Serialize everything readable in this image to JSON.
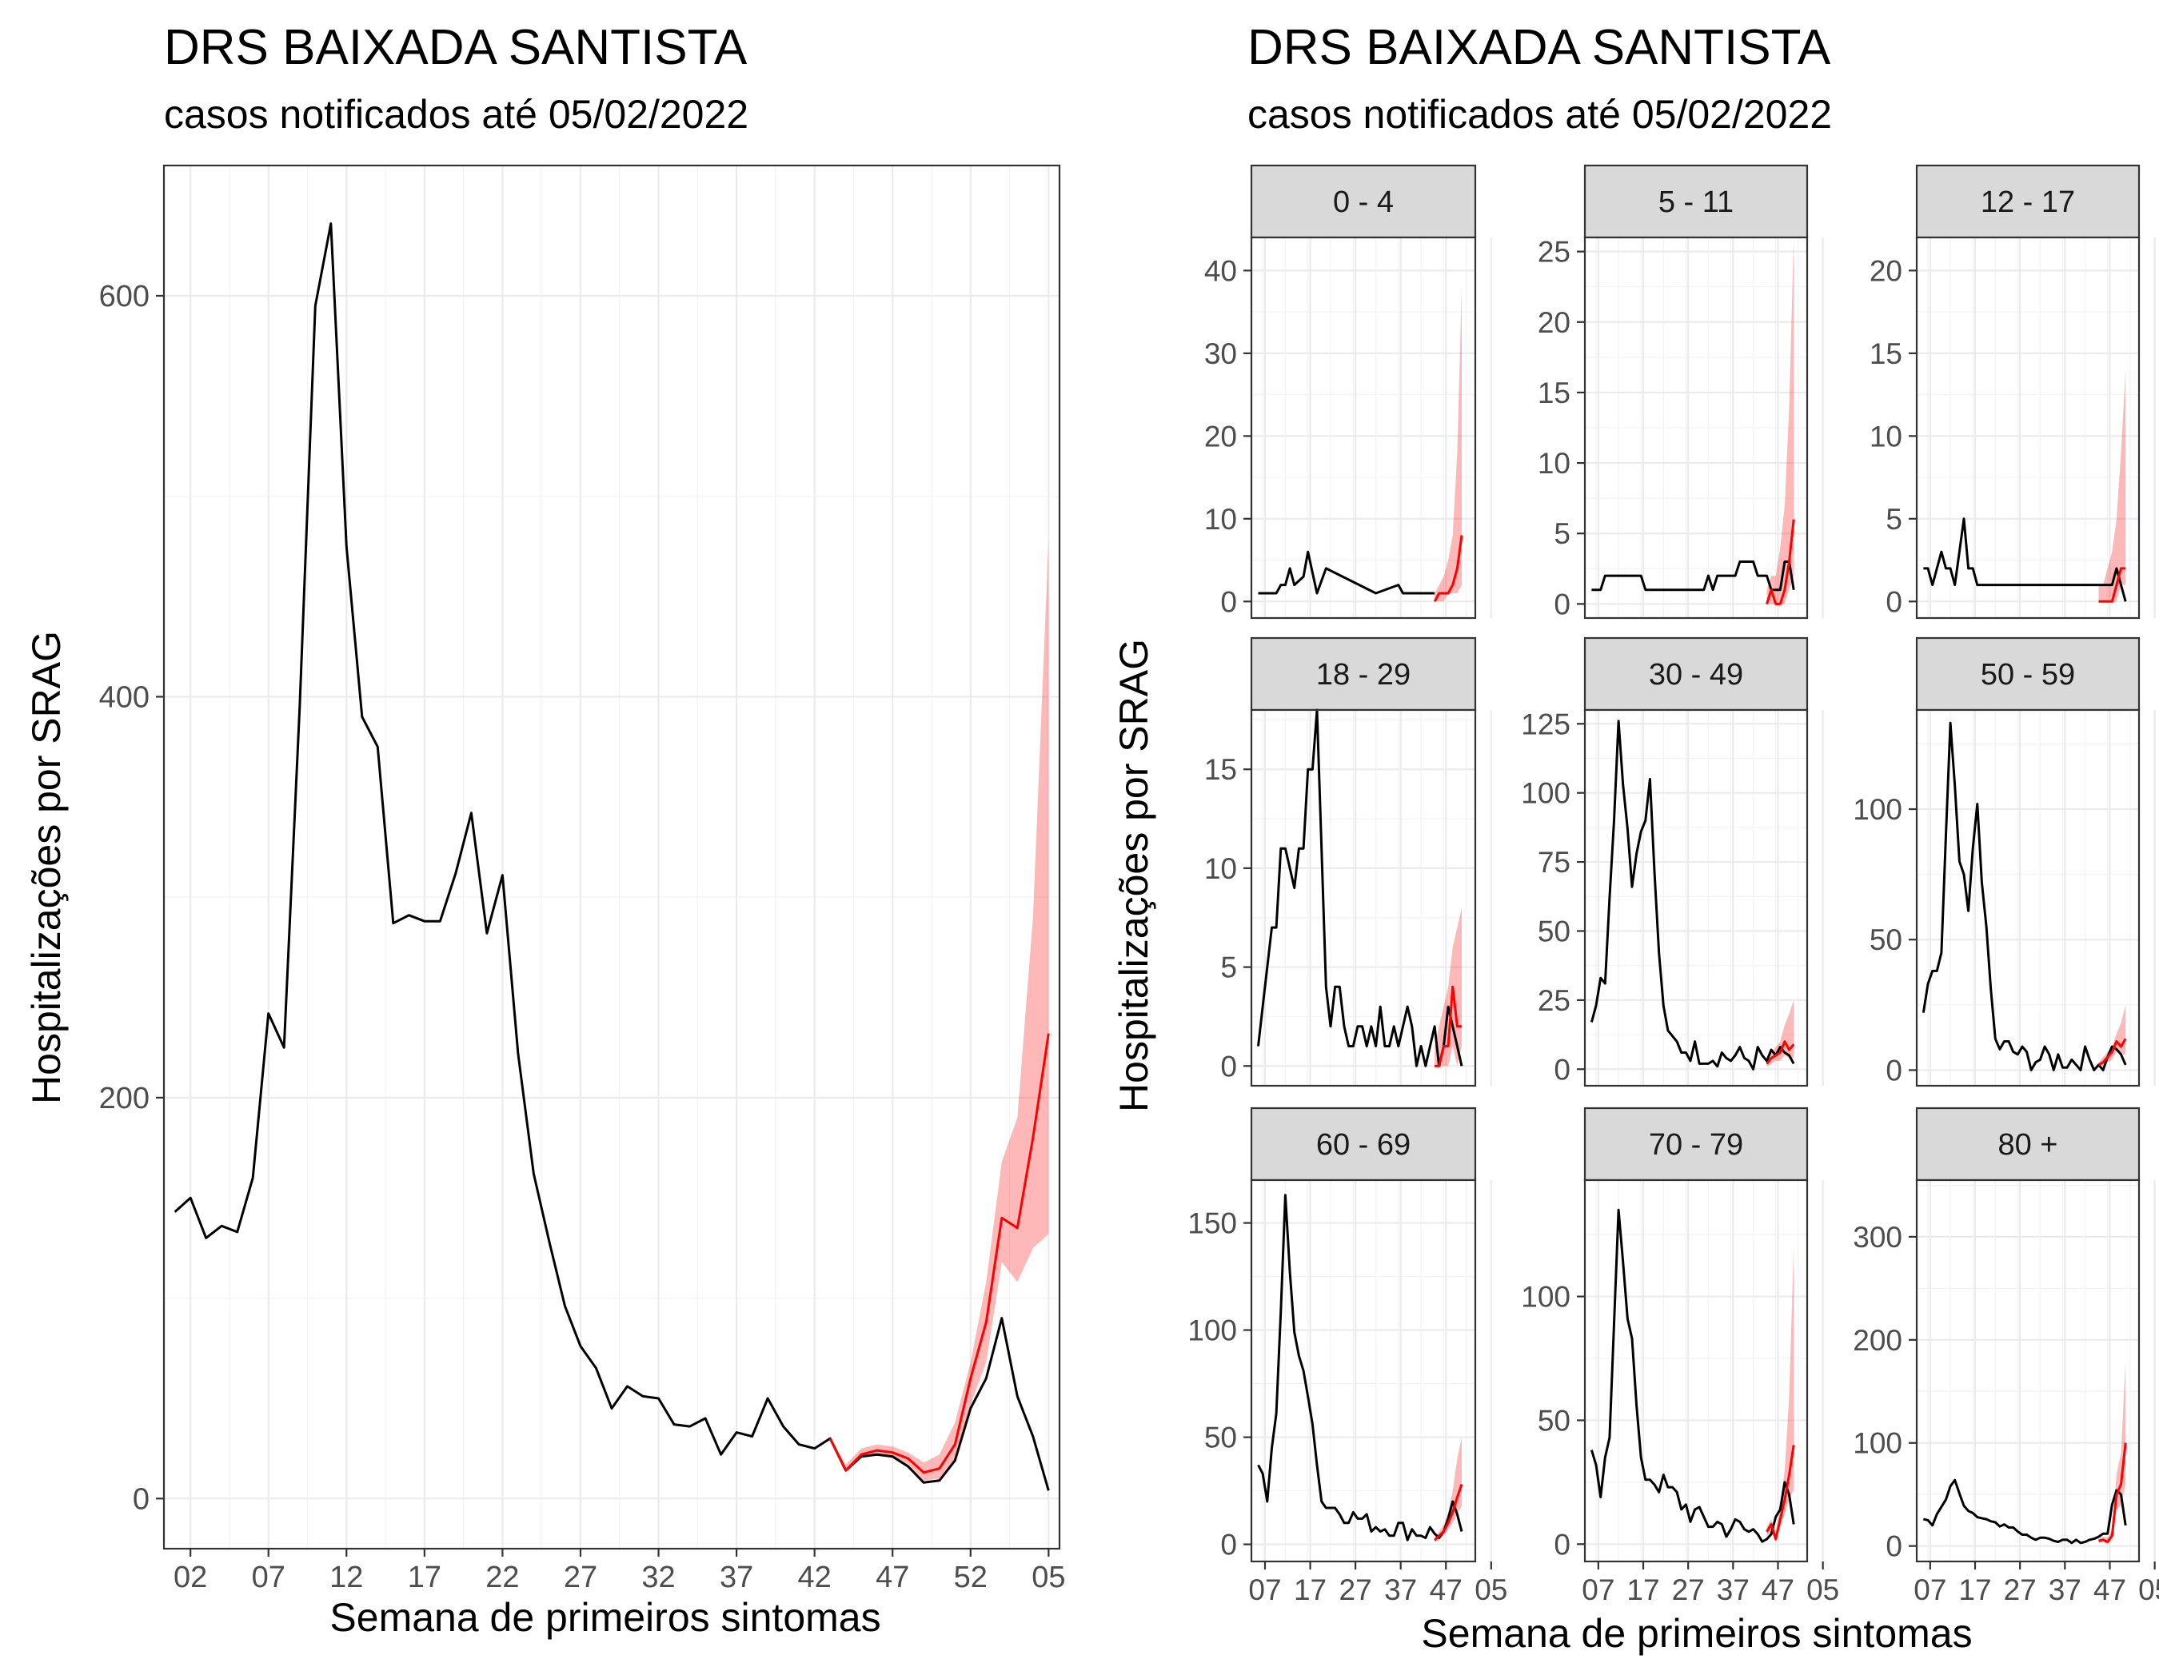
{
  "colors": {
    "observed": "#000000",
    "estimate": "#ff0000",
    "band": "#ff0000",
    "strip": "#d9d9d9"
  },
  "chart_data": [
    {
      "type": "line",
      "title": "DRS BAIXADA SANTISTA",
      "subtitle": "casos notificados até 05/02/2022",
      "xlabel": "Semana de primeiros sintomas",
      "ylabel": "Hospitalizações por SRAG",
      "x_tick_labels": [
        "02",
        "07",
        "12",
        "17",
        "22",
        "27",
        "32",
        "37",
        "42",
        "47",
        "52",
        "05"
      ],
      "y_ticks": [
        0,
        200,
        400,
        600
      ],
      "ylim": [
        -25,
        665
      ],
      "grid": true,
      "series": [
        {
          "role": "observed",
          "x": [
            1,
            2,
            3,
            4,
            5,
            6,
            7,
            8,
            9,
            10,
            11,
            12,
            13,
            14,
            15,
            16,
            17,
            18,
            19,
            20,
            21,
            22,
            23,
            24,
            25,
            26,
            27,
            28,
            29,
            30,
            31,
            32,
            33,
            34,
            35,
            36,
            37,
            38,
            39,
            40,
            41,
            42,
            43,
            44,
            45,
            46,
            47,
            48,
            49,
            50,
            51,
            52,
            53,
            54,
            55,
            56,
            57
          ],
          "values": [
            143,
            150,
            130,
            136,
            133,
            160,
            242,
            225,
            395,
            595,
            636,
            475,
            390,
            375,
            287,
            291,
            288,
            288,
            312,
            342,
            282,
            311,
            222,
            162,
            128,
            96,
            76,
            65,
            45,
            56,
            51,
            50,
            37,
            36,
            40,
            22,
            33,
            31,
            50,
            36,
            27,
            25,
            30,
            14,
            21,
            22,
            21,
            16,
            8,
            9,
            19,
            45,
            60,
            90,
            51,
            31,
            4
          ]
        },
        {
          "role": "estimate",
          "x": [
            43,
            44,
            45,
            46,
            47,
            48,
            49,
            50,
            51,
            52,
            53,
            54,
            55,
            56,
            57
          ],
          "values": [
            30,
            14,
            22,
            24,
            23,
            20,
            13,
            15,
            27,
            60,
            88,
            140,
            135,
            180,
            232
          ],
          "lower": [
            30,
            14,
            21,
            22,
            21,
            17,
            9,
            10,
            20,
            47,
            68,
            118,
            108,
            125,
            132
          ],
          "upper": [
            30,
            17,
            25,
            27,
            26,
            23,
            18,
            22,
            38,
            68,
            108,
            168,
            190,
            290,
            478
          ]
        }
      ]
    },
    {
      "type": "line",
      "title": "DRS BAIXADA SANTISTA",
      "subtitle": "casos notificados até 05/02/2022",
      "xlabel": "Semana de primeiros sintomas",
      "ylabel": "Hospitalizações por SRAG",
      "x_tick_labels": [
        "07",
        "17",
        "27",
        "37",
        "47",
        "05"
      ],
      "panels": [
        {
          "label": "0 - 4",
          "y_ticks": [
            0,
            10,
            20,
            30,
            40
          ],
          "ylim": [
            -2,
            44
          ],
          "observed": {
            "x": [
              1,
              5,
              6,
              7,
              8,
              9,
              11,
              12,
              14,
              16,
              27,
              32,
              33,
              35,
              40
            ],
            "values": [
              1,
              1,
              2,
              2,
              4,
              2,
              3,
              6,
              1,
              4,
              1,
              2,
              1,
              1,
              1
            ]
          },
          "estimate": {
            "x": [
              40,
              41,
              42,
              43,
              44,
              45,
              46
            ],
            "values": [
              0,
              1,
              1,
              1,
              2,
              4,
              8
            ],
            "lower": [
              0,
              0,
              0,
              1,
              1,
              1,
              2
            ],
            "upper": [
              1,
              2,
              3,
              5,
              8,
              18,
              38
            ]
          }
        },
        {
          "label": "5 - 11",
          "y_ticks": [
            0,
            5,
            10,
            15,
            20,
            25
          ],
          "ylim": [
            -1,
            26
          ]
        },
        {
          "label": "12 - 17",
          "y_ticks": [
            0,
            5,
            10,
            15,
            20
          ],
          "ylim": [
            -1,
            22
          ]
        },
        {
          "label": "18 - 29",
          "y_ticks": [
            0,
            5,
            10,
            15
          ],
          "ylim": [
            -1,
            18
          ]
        },
        {
          "label": "30 - 49",
          "y_ticks": [
            0,
            25,
            50,
            75,
            100,
            125
          ],
          "ylim": [
            -6,
            130
          ]
        },
        {
          "label": "50 - 59",
          "y_ticks": [
            0,
            50,
            100
          ],
          "ylim": [
            -6,
            138
          ]
        },
        {
          "label": "60 - 69",
          "y_ticks": [
            0,
            50,
            100,
            150
          ],
          "ylim": [
            -8,
            170
          ]
        },
        {
          "label": "70 - 79",
          "y_ticks": [
            0,
            50,
            100
          ],
          "ylim": [
            -7,
            147
          ]
        },
        {
          "label": "80 +",
          "y_ticks": [
            0,
            100,
            200,
            300
          ],
          "ylim": [
            -15,
            355
          ]
        }
      ]
    }
  ]
}
